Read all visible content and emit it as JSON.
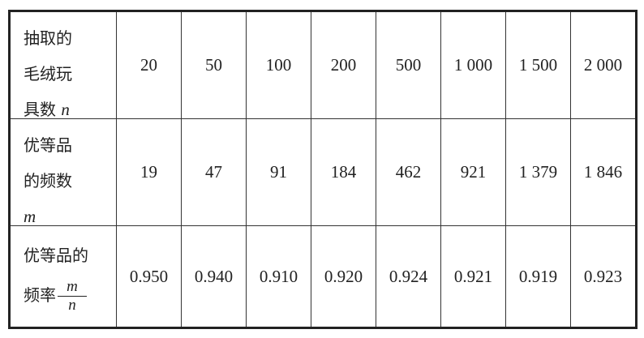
{
  "rows": [
    {
      "label_lines": [
        "抽取的",
        "毛绒玩",
        "具数"
      ],
      "label_var": "n",
      "values": [
        "20",
        "50",
        "100",
        "200",
        "500",
        "1 000",
        "1 500",
        "2 000"
      ]
    },
    {
      "label_lines": [
        "优等品",
        "的频数"
      ],
      "label_var": "m",
      "values": [
        "19",
        "47",
        "91",
        "184",
        "462",
        "921",
        "1 379",
        "1 846"
      ]
    },
    {
      "label_lines": [
        "优等品的",
        "频率"
      ],
      "label_frac_num": "m",
      "label_frac_den": "n",
      "values": [
        "0.950",
        "0.940",
        "0.910",
        "0.920",
        "0.924",
        "0.921",
        "0.919",
        "0.923"
      ]
    }
  ]
}
